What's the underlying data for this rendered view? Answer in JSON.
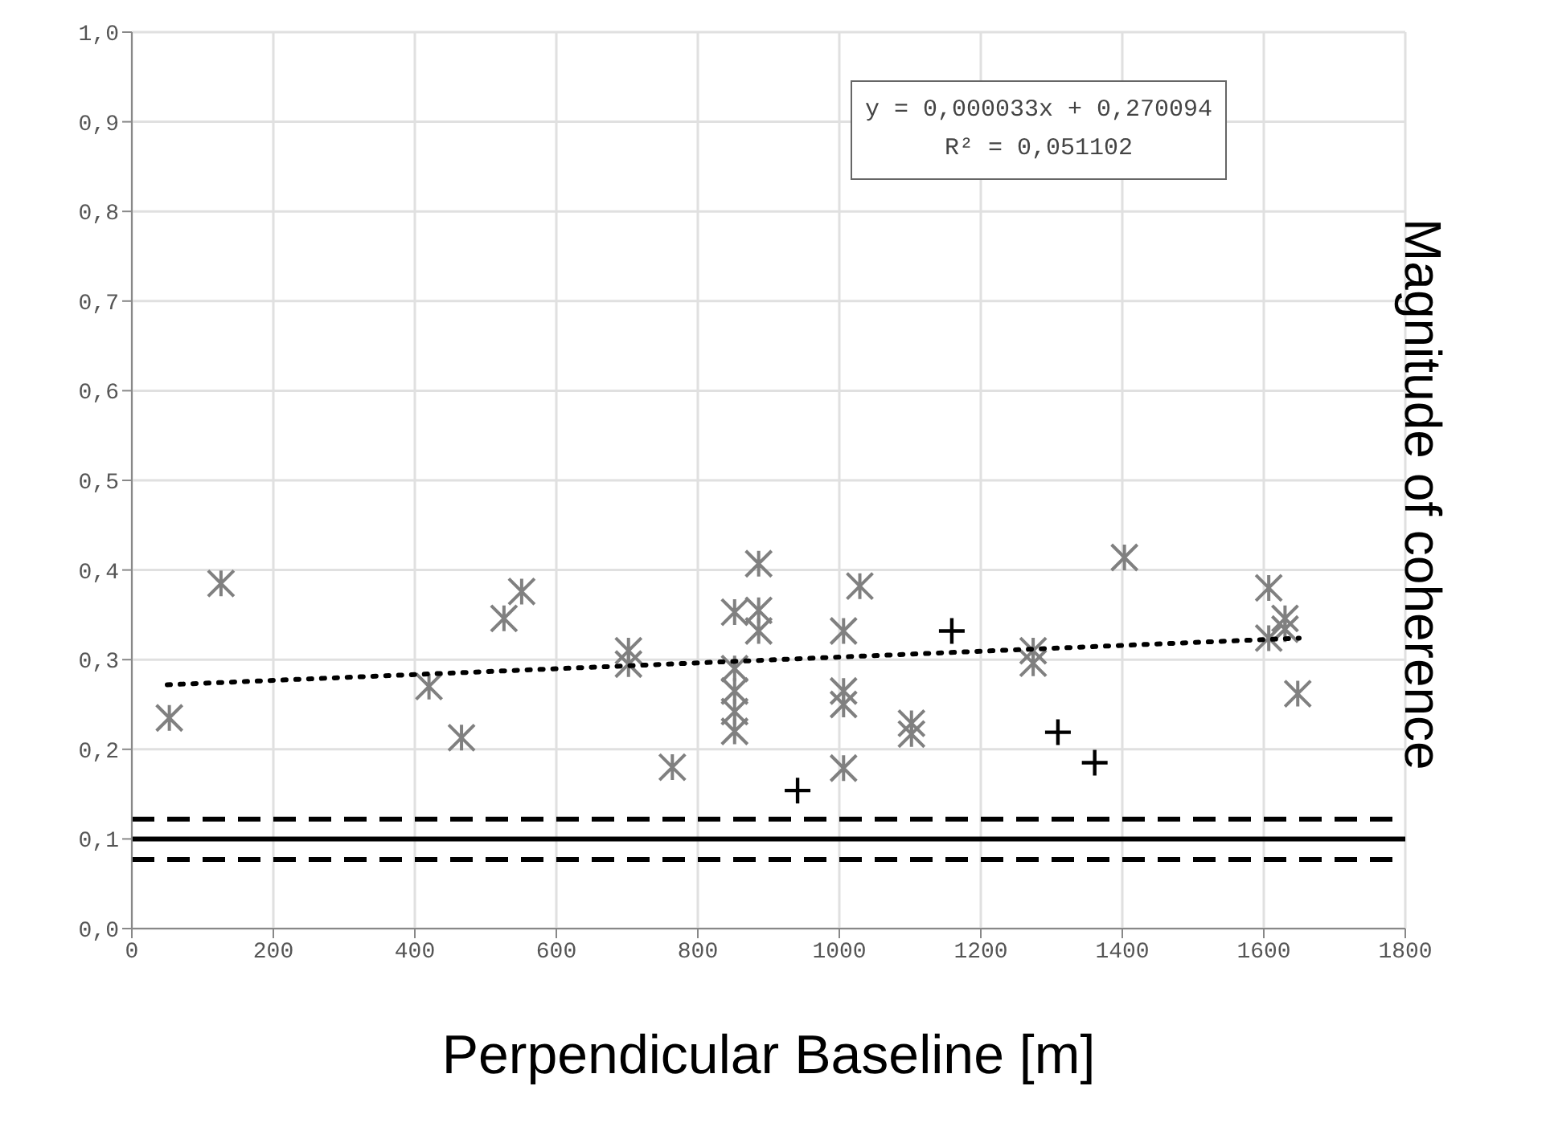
{
  "chart_data": {
    "type": "scatter",
    "xlabel": "Perpendicular Baseline [m]",
    "ylabel": "Magnitude of coherence",
    "annotations": [
      "y = 0,000033x + 0,270094",
      "R² = 0,051102"
    ],
    "xlim": [
      0,
      1800
    ],
    "xticks": [
      0,
      200,
      400,
      600,
      800,
      1000,
      1200,
      1400,
      1600,
      1800
    ],
    "ylim": [
      0,
      1
    ],
    "yticks": [
      {
        "value": 0,
        "label": "0,0"
      },
      {
        "value": 0.1,
        "label": "0,1"
      },
      {
        "value": 0.2,
        "label": "0,2"
      },
      {
        "value": 0.3,
        "label": "0,3"
      },
      {
        "value": 0.4,
        "label": "0,4"
      },
      {
        "value": 0.5,
        "label": "0,5"
      },
      {
        "value": 0.6,
        "label": "0,6"
      },
      {
        "value": 0.7,
        "label": "0,7"
      },
      {
        "value": 0.8,
        "label": "0,8"
      },
      {
        "value": 0.9,
        "label": "0,9"
      },
      {
        "value": 1,
        "label": "1,0"
      }
    ],
    "grid": true,
    "legend": false,
    "series": [
      {
        "color": "#808080",
        "x": [
          53,
          126,
          420,
          466,
          526,
          551,
          702,
          702,
          764,
          852,
          852,
          852,
          852,
          852,
          886,
          886,
          886,
          1006,
          1006,
          1006,
          1006,
          1029,
          1102,
          1102,
          1274,
          1274,
          1403,
          1607,
          1607,
          1630,
          1630,
          1648
        ],
        "values": [
          0.235,
          0.385,
          0.27,
          0.213,
          0.346,
          0.376,
          0.31,
          0.295,
          0.18,
          0.353,
          0.29,
          0.265,
          0.242,
          0.22,
          0.407,
          0.355,
          0.332,
          0.332,
          0.265,
          0.25,
          0.179,
          0.382,
          0.229,
          0.217,
          0.31,
          0.296,
          0.414,
          0.38,
          0.324,
          0.346,
          0.334,
          0.262
        ]
      },
      {
        "marker": "cross",
        "color": "#000000",
        "x": [
          941,
          1159,
          1309,
          1361
        ],
        "values": [
          0.154,
          0.332,
          0.219,
          0.185
        ]
      },
      {
        "type": "line",
        "marker": "none",
        "line_style": "dotted",
        "color": "#000000",
        "x": [
          50,
          1650
        ],
        "values": [
          0.272,
          0.324
        ]
      }
    ],
    "ref_lines": [
      {
        "axis": "y",
        "value": 0.122,
        "line_style": "dashed",
        "color": "#000000"
      },
      {
        "axis": "y",
        "value": 0.1,
        "line_style": "solid",
        "color": "#000000"
      },
      {
        "axis": "y",
        "value": 0.077,
        "line_style": "dashed",
        "color": "#000000"
      }
    ]
  }
}
